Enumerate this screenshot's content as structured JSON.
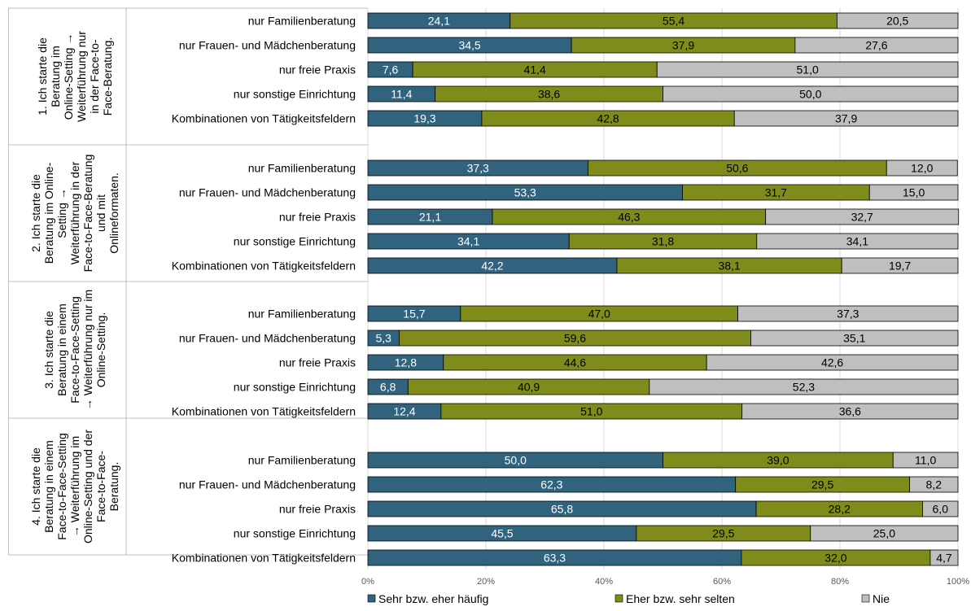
{
  "chart_data": {
    "type": "bar",
    "orientation": "horizontal",
    "stacked": "percent",
    "xlim": [
      0,
      100
    ],
    "xticks": [
      "0%",
      "20%",
      "40%",
      "60%",
      "80%",
      "100%"
    ],
    "grid": true,
    "legend_position": "bottom",
    "series": [
      {
        "name": "Sehr bzw. eher häufig",
        "color": "#31637f",
        "label_color": "#ffffff"
      },
      {
        "name": "Eher bzw. sehr selten",
        "color": "#7f8c1c",
        "label_color": "#000000"
      },
      {
        "name": "Nie",
        "color": "#bfbfbf",
        "label_color": "#000000"
      }
    ],
    "groups": [
      {
        "label_lines": [
          "1. Ich starte die",
          "Beratung im",
          "Online-Setting →",
          "Weiterführung nur",
          "in der Face-to-",
          "Face-Beratung."
        ],
        "rows": [
          {
            "label": "nur Familienberatung",
            "values": [
              24.1,
              55.4,
              20.5
            ],
            "labels": [
              "24,1",
              "55,4",
              "20,5"
            ]
          },
          {
            "label": "nur Frauen- und Mädchenberatung",
            "values": [
              34.5,
              37.9,
              27.6
            ],
            "labels": [
              "34,5",
              "37,9",
              "27,6"
            ]
          },
          {
            "label": "nur freie Praxis",
            "values": [
              7.6,
              41.4,
              51.0
            ],
            "labels": [
              "7,6",
              "41,4",
              "51,0"
            ]
          },
          {
            "label": "nur sonstige Einrichtung",
            "values": [
              11.4,
              38.6,
              50.0
            ],
            "labels": [
              "11,4",
              "38,6",
              "50,0"
            ]
          },
          {
            "label": "Kombinationen von Tätigkeitsfeldern",
            "values": [
              19.3,
              42.8,
              37.9
            ],
            "labels": [
              "19,3",
              "42,8",
              "37,9"
            ]
          }
        ]
      },
      {
        "label_lines": [
          "2. Ich starte die",
          "Beratung im Online-",
          "Setting →",
          "Weiterführung in der",
          "Face-to-Face-Beratung",
          "und mit",
          "Onlineformaten."
        ],
        "rows": [
          {
            "label": "nur Familienberatung",
            "values": [
              37.3,
              50.6,
              12.0
            ],
            "labels": [
              "37,3",
              "50,6",
              "12,0"
            ]
          },
          {
            "label": "nur Frauen- und Mädchenberatung",
            "values": [
              53.3,
              31.7,
              15.0
            ],
            "labels": [
              "53,3",
              "31,7",
              "15,0"
            ]
          },
          {
            "label": "nur freie Praxis",
            "values": [
              21.1,
              46.3,
              32.7
            ],
            "labels": [
              "21,1",
              "46,3",
              "32,7"
            ]
          },
          {
            "label": "nur sonstige Einrichtung",
            "values": [
              34.1,
              31.8,
              34.1
            ],
            "labels": [
              "34,1",
              "31,8",
              "34,1"
            ]
          },
          {
            "label": "Kombinationen von Tätigkeitsfeldern",
            "values": [
              42.2,
              38.1,
              19.7
            ],
            "labels": [
              "42,2",
              "38,1",
              "19,7"
            ]
          }
        ]
      },
      {
        "label_lines": [
          "3. Ich starte die",
          "Beratung in einem",
          "Face-to-Face-Setting",
          "→ Weiterführung nur im",
          "Online-Setting."
        ],
        "rows": [
          {
            "label": "nur Familienberatung",
            "values": [
              15.7,
              47.0,
              37.3
            ],
            "labels": [
              "15,7",
              "47,0",
              "37,3"
            ]
          },
          {
            "label": "nur Frauen- und Mädchenberatung",
            "values": [
              5.3,
              59.6,
              35.1
            ],
            "labels": [
              "5,3",
              "59,6",
              "35,1"
            ]
          },
          {
            "label": "nur freie Praxis",
            "values": [
              12.8,
              44.6,
              42.6
            ],
            "labels": [
              "12,8",
              "44,6",
              "42,6"
            ]
          },
          {
            "label": "nur sonstige Einrichtung",
            "values": [
              6.8,
              40.9,
              52.3
            ],
            "labels": [
              "6,8",
              "40,9",
              "52,3"
            ]
          },
          {
            "label": "Kombinationen von Tätigkeitsfeldern",
            "values": [
              12.4,
              51.0,
              36.6
            ],
            "labels": [
              "12,4",
              "51,0",
              "36,6"
            ]
          }
        ]
      },
      {
        "label_lines": [
          "4. Ich starte die",
          "Beratung in einem",
          "Face-to-Face-Setting",
          "→ Weiterführung im",
          "Online-Setting und der",
          "Face-to-Face-",
          "Beratung."
        ],
        "rows": [
          {
            "label": "nur Familienberatung",
            "values": [
              50.0,
              39.0,
              11.0
            ],
            "labels": [
              "50,0",
              "39,0",
              "11,0"
            ]
          },
          {
            "label": "nur Frauen- und Mädchenberatung",
            "values": [
              62.3,
              29.5,
              8.2
            ],
            "labels": [
              "62,3",
              "29,5",
              "8,2"
            ]
          },
          {
            "label": "nur freie Praxis",
            "values": [
              65.8,
              28.2,
              6.0
            ],
            "labels": [
              "65,8",
              "28,2",
              "6,0"
            ]
          },
          {
            "label": "nur sonstige Einrichtung",
            "values": [
              45.5,
              29.5,
              25.0
            ],
            "labels": [
              "45,5",
              "29,5",
              "25,0"
            ]
          },
          {
            "label": "Kombinationen von Tätigkeitsfeldern",
            "values": [
              63.3,
              32.0,
              4.7
            ],
            "labels": [
              "63,3",
              "32,0",
              "4,7"
            ]
          }
        ]
      }
    ]
  }
}
